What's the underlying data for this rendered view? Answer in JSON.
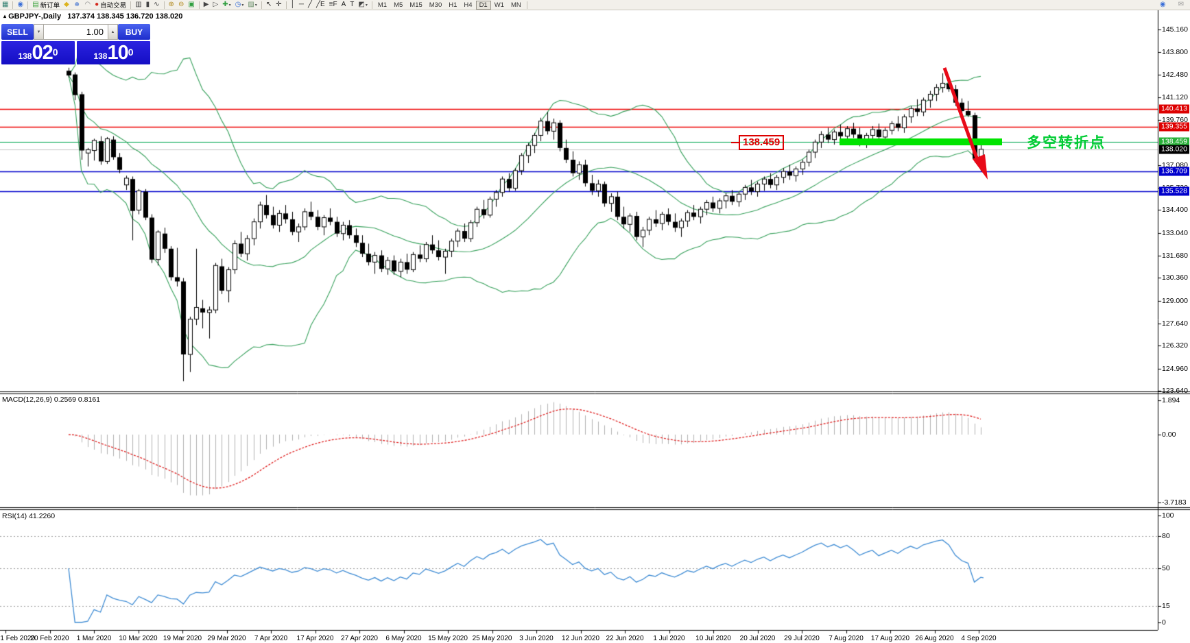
{
  "toolbar": {
    "items": [
      {
        "t": "icon",
        "name": "chart-window-icon",
        "g": "▦",
        "c": "#2e7d6e"
      },
      {
        "t": "sep"
      },
      {
        "t": "icon",
        "name": "quick-search-icon",
        "g": "◉",
        "c": "#3a6fd8"
      },
      {
        "t": "sep"
      },
      {
        "t": "button",
        "name": "new-order-button",
        "g": "▤",
        "c": "#3aa13a",
        "label": "新订单"
      },
      {
        "t": "icon",
        "name": "metaeditor-icon",
        "g": "◆",
        "c": "#dcb31e"
      },
      {
        "t": "icon",
        "name": "market-watch-icon",
        "g": "☻",
        "c": "#7b9bd8"
      },
      {
        "t": "icon",
        "name": "alerts-icon",
        "g": "◠",
        "c": "#888888"
      },
      {
        "t": "button",
        "name": "autotrading-button",
        "g": "●",
        "c": "#d42a1e",
        "label": "自动交易"
      },
      {
        "t": "sep"
      },
      {
        "t": "icon",
        "name": "bar-chart-icon",
        "g": "▥",
        "c": "#444444"
      },
      {
        "t": "icon",
        "name": "candlestick-chart-icon",
        "g": "▮",
        "c": "#444444"
      },
      {
        "t": "icon",
        "name": "line-chart-icon",
        "g": "∿",
        "c": "#444444"
      },
      {
        "t": "sep"
      },
      {
        "t": "icon",
        "name": "zoom-in-icon",
        "g": "⊕",
        "c": "#b28a1e"
      },
      {
        "t": "icon",
        "name": "zoom-out-icon",
        "g": "⊖",
        "c": "#b28a1e"
      },
      {
        "t": "icon",
        "name": "tile-windows-icon",
        "g": "▣",
        "c": "#2f9e3f"
      },
      {
        "t": "sep"
      },
      {
        "t": "icon",
        "name": "chart-shift-icon",
        "g": "▶",
        "c": "#444444"
      },
      {
        "t": "icon",
        "name": "auto-scroll-icon",
        "g": "▷",
        "c": "#444444"
      },
      {
        "t": "icon",
        "name": "add-indicator-icon",
        "g": "✚",
        "c": "#2f9e3f",
        "dd": true
      },
      {
        "t": "icon",
        "name": "periods-icon",
        "g": "◷",
        "c": "#3a6fd8",
        "dd": true
      },
      {
        "t": "icon",
        "name": "templates-icon",
        "g": "▨",
        "c": "#6a8f6a",
        "dd": true
      },
      {
        "t": "sep"
      },
      {
        "t": "icon",
        "name": "cursor-icon",
        "g": "↖",
        "c": "#222222"
      },
      {
        "t": "icon",
        "name": "crosshair-icon",
        "g": "✛",
        "c": "#222222"
      },
      {
        "t": "sep"
      },
      {
        "t": "icon",
        "name": "vertical-line-icon",
        "g": "│",
        "c": "#222222"
      },
      {
        "t": "icon",
        "name": "horizontal-line-icon",
        "g": "─",
        "c": "#222222"
      },
      {
        "t": "icon",
        "name": "trendline-icon",
        "g": "╱",
        "c": "#222222"
      },
      {
        "t": "icon",
        "name": "equidistant-channel-icon",
        "g": "╱E",
        "c": "#222222"
      },
      {
        "t": "icon",
        "name": "fibonacci-icon",
        "g": "≡F",
        "c": "#222222"
      },
      {
        "t": "icon",
        "name": "text-icon",
        "g": "A",
        "c": "#222222"
      },
      {
        "t": "icon",
        "name": "text-label-icon",
        "g": "T",
        "c": "#222222"
      },
      {
        "t": "icon",
        "name": "shapes-icon",
        "g": "◩",
        "c": "#444444",
        "dd": true
      },
      {
        "t": "sep"
      },
      {
        "t": "tf",
        "label": "M1"
      },
      {
        "t": "tf",
        "label": "M5"
      },
      {
        "t": "tf",
        "label": "M15"
      },
      {
        "t": "tf",
        "label": "M30"
      },
      {
        "t": "tf",
        "label": "H1"
      },
      {
        "t": "tf",
        "label": "H4"
      },
      {
        "t": "tf",
        "label": "D1",
        "active": true
      },
      {
        "t": "tf",
        "label": "W1"
      },
      {
        "t": "tf",
        "label": "MN"
      },
      {
        "t": "sep"
      }
    ],
    "right_icons": [
      {
        "name": "search-icon",
        "g": "◉",
        "c": "#3a6fd8"
      },
      {
        "name": "chat-icon",
        "g": "✉",
        "c": "#9a9a9a"
      }
    ]
  },
  "chart": {
    "collapse_glyph": "▴",
    "symbol_period": "GBPJPY-,Daily",
    "ohlc_text": "137.374 138.345 136.720 138.020"
  },
  "trade_panel": {
    "sell_label": "SELL",
    "buy_label": "BUY",
    "volume": "1.00",
    "spin_down": "▼",
    "spin_up": "▲",
    "sell_price": {
      "small": "138",
      "big": "02",
      "sup": "0"
    },
    "buy_price": {
      "small": "138",
      "big": "10",
      "sup": "0"
    }
  },
  "price_axis": {
    "ticks": [
      "145.160",
      "143.800",
      "142.480",
      "141.120",
      "139.760",
      "137.080",
      "135.720",
      "134.400",
      "133.040",
      "131.680",
      "130.360",
      "129.000",
      "127.640",
      "126.320",
      "124.960",
      "123.640"
    ],
    "badges": [
      {
        "label": "140.413",
        "price": 140.413,
        "color": "#dd0000"
      },
      {
        "label": "139.355",
        "price": 139.355,
        "color": "#dd0000"
      },
      {
        "label": "138.459",
        "price": 138.459,
        "color": "#28b038"
      },
      {
        "label": "138.020",
        "price": 138.02,
        "color": "#000000"
      },
      {
        "label": "136.709",
        "price": 136.709,
        "color": "#0000cc"
      },
      {
        "label": "135.528",
        "price": 135.528,
        "color": "#0000cc"
      }
    ]
  },
  "hlines": [
    {
      "price": 140.413,
      "color": "#ee0000",
      "w": 1.3
    },
    {
      "price": 139.355,
      "color": "#ee0000",
      "w": 1.3
    },
    {
      "price": 138.459,
      "color": "#00a651",
      "w": 1.2
    },
    {
      "price": 138.02,
      "color": "#c4c4c4",
      "w": 1
    },
    {
      "price": 136.709,
      "color": "#0000cc",
      "w": 1.6
    },
    {
      "price": 135.528,
      "color": "#0000cc",
      "w": 1.6
    }
  ],
  "macd_pane": {
    "label": "MACD(12,26,9) 0.2569 0.8161",
    "axis": [
      {
        "label": "1.894",
        "v": 1.894
      },
      {
        "label": "0.00",
        "v": 0.0
      },
      {
        "label": "-3.7183",
        "v": -3.7183
      }
    ]
  },
  "rsi_pane": {
    "label": "RSI(14) 41.2260",
    "axis": [
      {
        "label": "100",
        "v": 100
      },
      {
        "label": "80",
        "v": 80
      },
      {
        "label": "50",
        "v": 50
      },
      {
        "label": "15",
        "v": 15
      },
      {
        "label": "0",
        "v": 0
      }
    ],
    "levels": [
      80,
      50,
      15
    ]
  },
  "date_axis": [
    "1 Feb 2020",
    "20 Feb 2020",
    "1 Mar 2020",
    "10 Mar 2020",
    "19 Mar 2020",
    "29 Mar 2020",
    "7 Apr 2020",
    "17 Apr 2020",
    "27 Apr 2020",
    "6 May 2020",
    "15 May 2020",
    "25 May 2020",
    "3 Jun 2020",
    "12 Jun 2020",
    "22 Jun 2020",
    "1 Jul 2020",
    "10 Jul 2020",
    "20 Jul 2020",
    "29 Jul 2020",
    "7 Aug 2020",
    "17 Aug 2020",
    "26 Aug 2020",
    "4 Sep 2020"
  ],
  "annotations": {
    "price_box": "138.459",
    "cn_text": "多空转折点",
    "arrow_color": "#e80a18"
  },
  "chart_data": {
    "type": "candlestick",
    "symbol": "GBPJPY",
    "period": "Daily",
    "y_axis_range": [
      123.6,
      146.34
    ],
    "indicators": {
      "bollinger": {
        "period": 20,
        "dev": 2
      },
      "macd": {
        "fast": 12,
        "slow": 26,
        "signal": 9
      },
      "rsi": {
        "period": 14
      }
    },
    "candles": [
      [
        142.7,
        142.88,
        142.3,
        142.42
      ],
      [
        142.48,
        142.6,
        140.95,
        141.25
      ],
      [
        141.3,
        141.45,
        137.4,
        137.95
      ],
      [
        137.8,
        138.1,
        137.0,
        138.0
      ],
      [
        137.95,
        138.65,
        137.35,
        138.55
      ],
      [
        138.5,
        138.8,
        137.1,
        137.3
      ],
      [
        137.3,
        138.75,
        137.15,
        138.65
      ],
      [
        138.6,
        138.8,
        137.4,
        137.55
      ],
      [
        137.55,
        137.8,
        136.6,
        136.8
      ],
      [
        135.9,
        136.45,
        135.6,
        136.3
      ],
      [
        136.25,
        136.4,
        132.6,
        134.35
      ],
      [
        134.4,
        135.65,
        134.15,
        135.55
      ],
      [
        135.5,
        135.65,
        133.8,
        133.95
      ],
      [
        133.95,
        134.15,
        131.25,
        131.45
      ],
      [
        131.45,
        133.2,
        131.1,
        133.1
      ],
      [
        133.0,
        133.35,
        131.85,
        132.1
      ],
      [
        132.1,
        132.25,
        130.2,
        130.4
      ],
      [
        130.4,
        132.15,
        129.85,
        130.15
      ],
      [
        130.15,
        130.35,
        124.2,
        125.8
      ],
      [
        125.8,
        128.05,
        124.75,
        127.9
      ],
      [
        127.9,
        132.1,
        127.55,
        128.6
      ],
      [
        128.55,
        129.05,
        127.35,
        128.3
      ],
      [
        128.3,
        128.65,
        126.75,
        128.45
      ],
      [
        128.45,
        131.25,
        128.25,
        131.1
      ],
      [
        131.05,
        131.5,
        129.4,
        129.6
      ],
      [
        129.6,
        131.0,
        128.9,
        130.85
      ],
      [
        130.85,
        132.6,
        130.6,
        132.4
      ],
      [
        132.4,
        133.1,
        131.6,
        131.8
      ],
      [
        131.8,
        132.9,
        131.4,
        132.7
      ],
      [
        132.7,
        133.9,
        132.3,
        133.7
      ],
      [
        133.7,
        134.9,
        133.3,
        134.7
      ],
      [
        134.7,
        135.3,
        133.9,
        134.1
      ],
      [
        134.1,
        134.6,
        133.3,
        133.5
      ],
      [
        133.5,
        134.4,
        133.1,
        134.2
      ],
      [
        134.2,
        134.7,
        133.6,
        133.85
      ],
      [
        133.85,
        134.3,
        132.9,
        133.1
      ],
      [
        133.1,
        133.6,
        132.5,
        133.4
      ],
      [
        133.4,
        134.5,
        133.2,
        134.3
      ],
      [
        134.3,
        134.9,
        133.8,
        134.0
      ],
      [
        134.0,
        134.4,
        133.2,
        133.4
      ],
      [
        133.4,
        134.1,
        132.9,
        133.95
      ],
      [
        133.95,
        134.5,
        133.5,
        133.7
      ],
      [
        133.7,
        134.0,
        132.8,
        133.0
      ],
      [
        133.0,
        133.7,
        132.6,
        133.5
      ],
      [
        133.5,
        133.8,
        132.7,
        132.9
      ],
      [
        132.9,
        133.3,
        132.2,
        132.45
      ],
      [
        132.45,
        132.9,
        131.6,
        131.8
      ],
      [
        131.8,
        132.4,
        131.1,
        131.3
      ],
      [
        131.3,
        131.9,
        130.6,
        131.7
      ],
      [
        131.7,
        132.0,
        130.7,
        130.9
      ],
      [
        130.9,
        131.6,
        130.55,
        131.4
      ],
      [
        131.4,
        131.7,
        130.55,
        130.75
      ],
      [
        130.75,
        131.5,
        130.4,
        131.3
      ],
      [
        131.3,
        131.8,
        130.6,
        130.85
      ],
      [
        130.85,
        131.9,
        130.7,
        131.75
      ],
      [
        131.75,
        132.3,
        131.3,
        131.5
      ],
      [
        131.5,
        132.5,
        131.3,
        132.35
      ],
      [
        132.35,
        132.9,
        131.8,
        132.0
      ],
      [
        132.0,
        132.6,
        131.4,
        131.6
      ],
      [
        131.6,
        132.1,
        130.6,
        131.95
      ],
      [
        131.95,
        132.7,
        131.6,
        132.55
      ],
      [
        132.55,
        133.3,
        132.2,
        133.15
      ],
      [
        133.15,
        133.6,
        132.5,
        132.7
      ],
      [
        132.7,
        133.8,
        132.5,
        133.65
      ],
      [
        133.65,
        134.6,
        133.4,
        134.45
      ],
      [
        134.45,
        135.0,
        133.9,
        134.1
      ],
      [
        134.1,
        135.2,
        133.95,
        135.05
      ],
      [
        135.05,
        135.6,
        134.6,
        135.45
      ],
      [
        135.45,
        136.4,
        135.2,
        136.25
      ],
      [
        136.25,
        136.6,
        135.5,
        135.7
      ],
      [
        135.7,
        136.9,
        135.55,
        136.75
      ],
      [
        136.75,
        137.8,
        136.5,
        137.65
      ],
      [
        137.65,
        138.4,
        137.2,
        138.25
      ],
      [
        138.25,
        139.0,
        137.8,
        138.85
      ],
      [
        138.85,
        139.9,
        138.5,
        139.7
      ],
      [
        139.7,
        140.25,
        138.9,
        139.1
      ],
      [
        139.1,
        139.85,
        138.6,
        139.6
      ],
      [
        139.6,
        139.75,
        137.9,
        138.1
      ],
      [
        138.1,
        138.6,
        137.2,
        137.4
      ],
      [
        137.4,
        137.9,
        136.4,
        136.6
      ],
      [
        136.6,
        137.3,
        136.2,
        137.1
      ],
      [
        137.1,
        137.4,
        135.8,
        136.0
      ],
      [
        136.0,
        136.5,
        135.3,
        135.55
      ],
      [
        135.55,
        136.2,
        135.2,
        135.95
      ],
      [
        135.95,
        136.1,
        134.6,
        134.8
      ],
      [
        134.8,
        135.4,
        134.3,
        135.2
      ],
      [
        135.2,
        135.5,
        133.8,
        134.0
      ],
      [
        134.0,
        134.6,
        133.3,
        133.55
      ],
      [
        133.55,
        134.2,
        133.1,
        134.05
      ],
      [
        134.05,
        134.3,
        132.6,
        132.8
      ],
      [
        132.8,
        133.4,
        132.2,
        133.2
      ],
      [
        133.2,
        134.0,
        132.9,
        133.85
      ],
      [
        133.85,
        134.4,
        133.4,
        133.6
      ],
      [
        133.6,
        134.3,
        133.2,
        134.15
      ],
      [
        134.15,
        134.5,
        133.5,
        133.7
      ],
      [
        133.7,
        134.2,
        133.1,
        133.35
      ],
      [
        133.35,
        133.9,
        132.8,
        133.75
      ],
      [
        133.75,
        134.4,
        133.4,
        134.25
      ],
      [
        134.25,
        134.7,
        133.8,
        134.0
      ],
      [
        134.0,
        134.6,
        133.6,
        134.45
      ],
      [
        134.45,
        135.0,
        134.1,
        134.85
      ],
      [
        134.85,
        135.2,
        134.3,
        134.5
      ],
      [
        134.5,
        135.1,
        134.2,
        134.95
      ],
      [
        134.95,
        135.4,
        134.5,
        135.25
      ],
      [
        135.25,
        135.6,
        134.7,
        134.9
      ],
      [
        134.9,
        135.5,
        134.6,
        135.35
      ],
      [
        135.35,
        135.9,
        135.0,
        135.75
      ],
      [
        135.75,
        136.2,
        135.3,
        135.5
      ],
      [
        135.5,
        136.1,
        135.2,
        135.95
      ],
      [
        135.95,
        136.4,
        135.55,
        136.25
      ],
      [
        136.25,
        136.6,
        135.7,
        135.9
      ],
      [
        135.9,
        136.5,
        135.6,
        136.35
      ],
      [
        136.35,
        136.9,
        136.0,
        136.7
      ],
      [
        136.7,
        137.1,
        136.2,
        136.45
      ],
      [
        136.45,
        137.0,
        136.1,
        136.85
      ],
      [
        136.85,
        137.4,
        136.5,
        137.25
      ],
      [
        137.25,
        138.0,
        137.0,
        137.85
      ],
      [
        137.85,
        138.6,
        137.5,
        138.45
      ],
      [
        138.45,
        139.1,
        138.1,
        138.9
      ],
      [
        138.9,
        139.3,
        138.4,
        138.6
      ],
      [
        138.6,
        139.2,
        138.3,
        139.05
      ],
      [
        139.05,
        139.5,
        138.6,
        138.8
      ],
      [
        138.8,
        139.4,
        138.5,
        139.25
      ],
      [
        139.25,
        139.6,
        138.7,
        138.9
      ],
      [
        138.9,
        139.3,
        138.2,
        138.45
      ],
      [
        138.45,
        139.0,
        138.1,
        138.85
      ],
      [
        138.85,
        139.4,
        138.5,
        139.2
      ],
      [
        139.2,
        139.55,
        138.6,
        138.75
      ],
      [
        138.75,
        139.3,
        138.3,
        139.15
      ],
      [
        139.15,
        139.7,
        138.9,
        139.55
      ],
      [
        139.55,
        140.0,
        139.1,
        139.3
      ],
      [
        139.3,
        140.1,
        139.0,
        139.95
      ],
      [
        139.95,
        140.6,
        139.6,
        140.45
      ],
      [
        140.45,
        141.0,
        140.0,
        140.25
      ],
      [
        140.25,
        141.1,
        140.0,
        140.95
      ],
      [
        140.95,
        141.5,
        140.5,
        141.3
      ],
      [
        141.3,
        141.9,
        140.9,
        141.7
      ],
      [
        141.7,
        142.55,
        141.4,
        141.95
      ],
      [
        141.95,
        142.3,
        141.45,
        141.6
      ],
      [
        141.6,
        141.85,
        140.6,
        140.8
      ],
      [
        140.8,
        141.05,
        140.0,
        140.3
      ],
      [
        140.3,
        140.9,
        139.95,
        140.05
      ],
      [
        140.05,
        140.2,
        137.25,
        137.45
      ],
      [
        137.374,
        138.345,
        136.72,
        138.02
      ]
    ]
  }
}
